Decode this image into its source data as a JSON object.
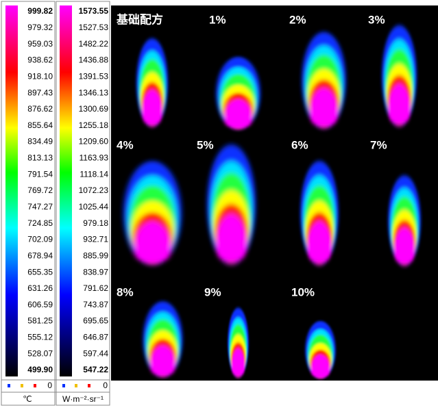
{
  "colorbars": [
    {
      "labels": [
        "999.82",
        "979.32",
        "959.03",
        "938.62",
        "918.10",
        "897.43",
        "876.62",
        "855.64",
        "834.49",
        "813.13",
        "791.54",
        "769.72",
        "747.27",
        "724.85",
        "702.09",
        "678.94",
        "655.35",
        "631.26",
        "606.59",
        "581.25",
        "555.12",
        "528.07",
        "499.90"
      ],
      "count": "0",
      "unit": "℃"
    },
    {
      "labels": [
        "1573.55",
        "1527.53",
        "1482.22",
        "1436.88",
        "1391.53",
        "1346.13",
        "1300.69",
        "1255.18",
        "1209.60",
        "1163.93",
        "1118.14",
        "1072.23",
        "1025.44",
        "979.18",
        "932.71",
        "885.99",
        "838.97",
        "791.62",
        "743.87",
        "695.65",
        "646.87",
        "597.44",
        "547.22"
      ],
      "count": "0",
      "unit": "W·m⁻²·sr⁻¹"
    }
  ],
  "panels": [
    {
      "label": "基础配方"
    },
    {
      "label": "1%"
    },
    {
      "label": "2%"
    },
    {
      "label": "3%"
    },
    {
      "label": "4%"
    },
    {
      "label": "5%"
    },
    {
      "label": "6%"
    },
    {
      "label": "7%"
    },
    {
      "label": "8%"
    },
    {
      "label": "9%"
    },
    {
      "label": "10%"
    }
  ]
}
